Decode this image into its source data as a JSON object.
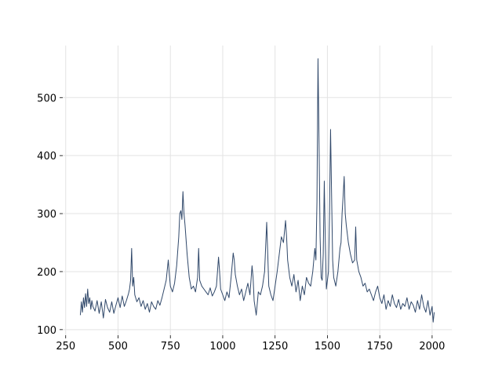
{
  "chart_data": {
    "type": "line",
    "color": "#30486a",
    "grid": true,
    "xlim": [
      236,
      2094
    ],
    "ylim": [
      90.3,
      589.7
    ],
    "xticks": [
      250,
      500,
      750,
      1000,
      1250,
      1500,
      1750,
      2000
    ],
    "yticks": [
      100,
      200,
      300,
      400,
      500
    ],
    "x": [
      320,
      325,
      330,
      335,
      340,
      345,
      350,
      355,
      360,
      365,
      370,
      375,
      380,
      390,
      400,
      410,
      420,
      430,
      440,
      450,
      460,
      470,
      480,
      490,
      500,
      510,
      520,
      530,
      540,
      550,
      555,
      560,
      565,
      570,
      575,
      580,
      590,
      600,
      610,
      620,
      630,
      640,
      650,
      660,
      670,
      680,
      690,
      700,
      710,
      720,
      730,
      740,
      745,
      750,
      760,
      770,
      780,
      790,
      795,
      800,
      805,
      810,
      815,
      820,
      830,
      840,
      850,
      860,
      870,
      880,
      885,
      890,
      900,
      910,
      920,
      930,
      940,
      950,
      960,
      970,
      980,
      985,
      990,
      1000,
      1010,
      1020,
      1030,
      1040,
      1050,
      1055,
      1060,
      1070,
      1080,
      1090,
      1100,
      1110,
      1120,
      1130,
      1140,
      1145,
      1150,
      1160,
      1170,
      1180,
      1190,
      1200,
      1210,
      1215,
      1220,
      1230,
      1240,
      1250,
      1260,
      1270,
      1280,
      1290,
      1300,
      1305,
      1310,
      1320,
      1330,
      1340,
      1350,
      1360,
      1370,
      1380,
      1390,
      1400,
      1410,
      1420,
      1430,
      1440,
      1445,
      1450,
      1455,
      1460,
      1465,
      1470,
      1475,
      1480,
      1485,
      1490,
      1495,
      1500,
      1505,
      1510,
      1515,
      1520,
      1525,
      1530,
      1540,
      1550,
      1560,
      1565,
      1570,
      1575,
      1580,
      1585,
      1590,
      1600,
      1610,
      1620,
      1630,
      1635,
      1640,
      1650,
      1660,
      1670,
      1680,
      1690,
      1700,
      1710,
      1720,
      1730,
      1740,
      1750,
      1760,
      1770,
      1780,
      1790,
      1800,
      1810,
      1820,
      1830,
      1840,
      1850,
      1860,
      1870,
      1880,
      1890,
      1900,
      1910,
      1920,
      1930,
      1940,
      1950,
      1960,
      1970,
      1980,
      1990,
      2000,
      2005,
      2010
    ],
    "values": [
      125,
      148,
      130,
      155,
      138,
      162,
      140,
      170,
      145,
      155,
      135,
      150,
      140,
      132,
      150,
      128,
      148,
      120,
      152,
      138,
      130,
      148,
      128,
      142,
      155,
      138,
      158,
      140,
      150,
      162,
      170,
      185,
      240,
      175,
      190,
      160,
      148,
      155,
      140,
      150,
      135,
      145,
      130,
      148,
      140,
      135,
      150,
      142,
      155,
      170,
      185,
      220,
      195,
      175,
      165,
      180,
      210,
      260,
      300,
      305,
      290,
      338,
      300,
      280,
      230,
      190,
      170,
      175,
      165,
      190,
      240,
      185,
      175,
      170,
      165,
      160,
      172,
      158,
      165,
      175,
      225,
      200,
      170,
      160,
      150,
      165,
      155,
      190,
      232,
      220,
      195,
      175,
      160,
      170,
      150,
      165,
      180,
      160,
      210,
      190,
      150,
      125,
      165,
      160,
      175,
      200,
      285,
      230,
      175,
      160,
      150,
      175,
      200,
      230,
      260,
      250,
      288,
      260,
      220,
      190,
      175,
      195,
      165,
      185,
      150,
      175,
      160,
      190,
      180,
      175,
      200,
      240,
      220,
      320,
      567,
      420,
      260,
      190,
      185,
      230,
      356,
      250,
      170,
      185,
      200,
      300,
      445,
      330,
      220,
      190,
      175,
      200,
      240,
      250,
      300,
      330,
      364,
      300,
      280,
      250,
      230,
      215,
      220,
      277,
      220,
      200,
      190,
      175,
      180,
      165,
      170,
      160,
      150,
      165,
      175,
      155,
      145,
      160,
      135,
      150,
      140,
      160,
      145,
      138,
      152,
      135,
      145,
      140,
      155,
      135,
      148,
      142,
      130,
      150,
      135,
      160,
      140,
      130,
      150,
      125,
      140,
      113,
      130
    ]
  }
}
